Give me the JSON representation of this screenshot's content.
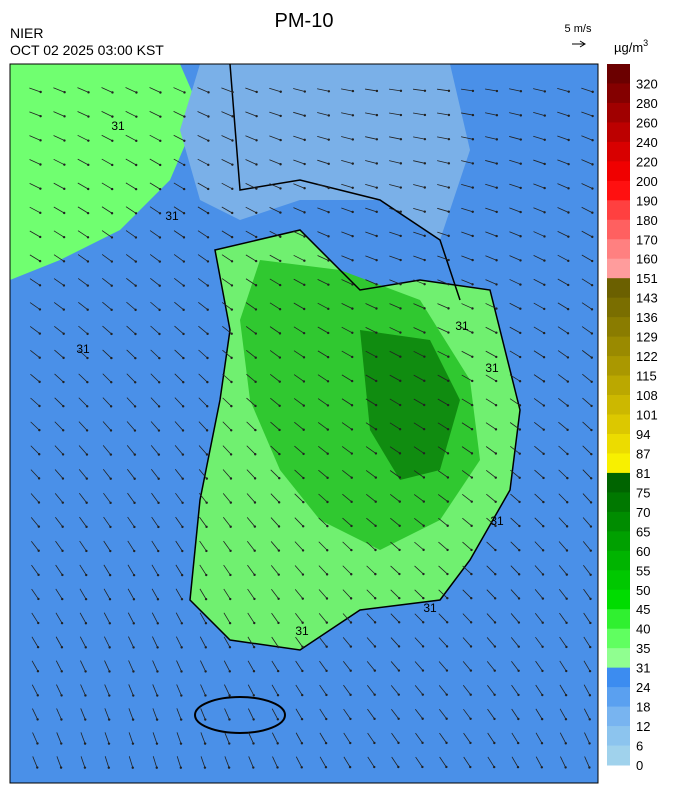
{
  "header": {
    "title": "PM-10",
    "agency": "NIER",
    "datetime": "OCT 02 2025 03:00 KST",
    "wind_scale": "5 m/s",
    "unit": "µg/m",
    "unit_power": "3"
  },
  "colorbar": {
    "levels": [
      320,
      280,
      260,
      240,
      220,
      200,
      190,
      180,
      170,
      160,
      151,
      143,
      136,
      129,
      122,
      115,
      108,
      101,
      94,
      87,
      81,
      75,
      70,
      65,
      60,
      55,
      50,
      45,
      40,
      35,
      31,
      24,
      18,
      12,
      6,
      0
    ],
    "colors": [
      "#6b0000",
      "#840000",
      "#a00000",
      "#bc0000",
      "#d80000",
      "#f00000",
      "#ff1010",
      "#ff4040",
      "#ff6060",
      "#ff8080",
      "#ff9c9c",
      "#6b6000",
      "#7a6e00",
      "#8a7c00",
      "#9a8a00",
      "#aa9800",
      "#bba800",
      "#ccb800",
      "#dcc800",
      "#ecdc00",
      "#f8f000",
      "#006400",
      "#007800",
      "#008c00",
      "#00a000",
      "#00b400",
      "#00c800",
      "#00dc00",
      "#30f030",
      "#60ff60",
      "#90ff90",
      "#3c8cf0",
      "#5aa0f0",
      "#78b4f0",
      "#8cc4ee",
      "#a0d2ec"
    ]
  },
  "map": {
    "contour_labels": [
      "31",
      "31",
      "31",
      "31",
      "31",
      "31",
      "31",
      "31"
    ]
  }
}
